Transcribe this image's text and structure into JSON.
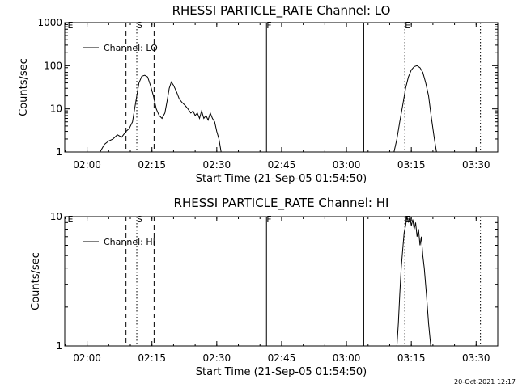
{
  "chart_data": [
    {
      "type": "line",
      "title": "RHESSI PARTICLE_RATE Channel: LO",
      "xlabel": "Start Time (21-Sep-05 01:54:50)",
      "ylabel": "Counts/sec",
      "yscale": "log",
      "xlim": [
        "01:54:50",
        "03:35:00"
      ],
      "ylim": [
        1,
        1000
      ],
      "x_ticks": [
        "02:00",
        "02:15",
        "02:30",
        "02:45",
        "03:00",
        "03:15",
        "03:30"
      ],
      "y_ticks": [
        "1",
        "10",
        "100",
        "1000"
      ],
      "legend": {
        "label": "Channel: LO",
        "placement": "top-left"
      },
      "markers": [
        {
          "label": "E",
          "time": "01:55:30",
          "style": "none"
        },
        {
          "label": "S",
          "time": "02:11:30",
          "style": "dotted"
        },
        {
          "label": "F",
          "time": "02:41:30",
          "style": "solid"
        },
        {
          "label": "E",
          "time": "03:13:30",
          "style": "dotted"
        }
      ],
      "extra_lines": [
        {
          "time": "02:09:00",
          "style": "dashed"
        },
        {
          "time": "02:15:30",
          "style": "dashed"
        },
        {
          "time": "03:04:00",
          "style": "solid"
        },
        {
          "time": "03:31:00",
          "style": "dotted"
        }
      ],
      "series": [
        {
          "name": "Channel: LO",
          "segments": [
            [
              [
                "02:03:00",
                1
              ],
              [
                "02:04:00",
                1.5
              ],
              [
                "02:05:00",
                1.8
              ],
              [
                "02:06:00",
                2
              ],
              [
                "02:07:00",
                2.5
              ],
              [
                "02:08:00",
                2.2
              ],
              [
                "02:09:00",
                3
              ],
              [
                "02:09:45",
                3.5
              ],
              [
                "02:10:30",
                5
              ],
              [
                "02:11:00",
                10
              ],
              [
                "02:11:30",
                20
              ],
              [
                "02:12:00",
                40
              ],
              [
                "02:12:40",
                57
              ],
              [
                "02:13:20",
                60
              ],
              [
                "02:14:00",
                55
              ],
              [
                "02:14:40",
                35
              ],
              [
                "02:15:20",
                20
              ],
              [
                "02:16:00",
                10
              ],
              [
                "02:16:40",
                7
              ],
              [
                "02:17:20",
                6
              ],
              [
                "02:18:00",
                8
              ],
              [
                "02:18:30",
                15
              ],
              [
                "02:19:00",
                30
              ],
              [
                "02:19:30",
                42
              ],
              [
                "02:20:00",
                35
              ],
              [
                "02:20:40",
                25
              ],
              [
                "02:21:20",
                17
              ],
              [
                "02:22:00",
                14
              ],
              [
                "02:22:40",
                12
              ],
              [
                "02:23:20",
                10
              ],
              [
                "02:24:00",
                8
              ],
              [
                "02:24:30",
                9
              ],
              [
                "02:25:00",
                7
              ],
              [
                "02:25:30",
                8
              ],
              [
                "02:26:00",
                6
              ],
              [
                "02:26:30",
                9
              ],
              [
                "02:27:00",
                6
              ],
              [
                "02:27:30",
                7
              ],
              [
                "02:28:00",
                5.5
              ],
              [
                "02:28:30",
                8
              ],
              [
                "02:29:00",
                6
              ],
              [
                "02:29:30",
                5
              ],
              [
                "02:30:00",
                3
              ],
              [
                "02:30:30",
                2
              ],
              [
                "02:31:00",
                1
              ]
            ],
            [
              [
                "03:11:00",
                1
              ],
              [
                "03:11:40",
                2
              ],
              [
                "03:12:20",
                5
              ],
              [
                "03:13:00",
                12
              ],
              [
                "03:13:40",
                30
              ],
              [
                "03:14:20",
                55
              ],
              [
                "03:15:00",
                80
              ],
              [
                "03:15:40",
                95
              ],
              [
                "03:16:20",
                100
              ],
              [
                "03:17:00",
                90
              ],
              [
                "03:17:40",
                70
              ],
              [
                "03:18:20",
                40
              ],
              [
                "03:19:00",
                20
              ],
              [
                "03:19:40",
                6
              ],
              [
                "03:20:20",
                2
              ],
              [
                "03:20:50",
                1
              ]
            ]
          ]
        }
      ]
    },
    {
      "type": "line",
      "title": "RHESSI PARTICLE_RATE Channel: HI",
      "xlabel": "Start Time (21-Sep-05 01:54:50)",
      "ylabel": "Counts/sec",
      "yscale": "log",
      "xlim": [
        "01:54:50",
        "03:35:00"
      ],
      "ylim": [
        1,
        10
      ],
      "x_ticks": [
        "02:00",
        "02:15",
        "02:30",
        "02:45",
        "03:00",
        "03:15",
        "03:30"
      ],
      "y_ticks": [
        "1",
        "10"
      ],
      "legend": {
        "label": "Channel: HI",
        "placement": "top-left"
      },
      "markers": [
        {
          "label": "E",
          "time": "01:55:30",
          "style": "none"
        },
        {
          "label": "S",
          "time": "02:11:30",
          "style": "dotted"
        },
        {
          "label": "F",
          "time": "02:41:30",
          "style": "solid"
        },
        {
          "label": "E",
          "time": "03:13:30",
          "style": "dotted"
        }
      ],
      "extra_lines": [
        {
          "time": "02:09:00",
          "style": "dashed"
        },
        {
          "time": "02:15:30",
          "style": "dashed"
        },
        {
          "time": "03:04:00",
          "style": "solid"
        },
        {
          "time": "03:31:00",
          "style": "dotted"
        }
      ],
      "series": [
        {
          "name": "Channel: HI",
          "segments": [
            [
              [
                "03:11:40",
                1
              ],
              [
                "03:12:00",
                1.5
              ],
              [
                "03:12:20",
                2.5
              ],
              [
                "03:12:40",
                4
              ],
              [
                "03:13:00",
                5.5
              ],
              [
                "03:13:20",
                7.5
              ],
              [
                "03:13:40",
                8.5
              ],
              [
                "03:14:00",
                10
              ],
              [
                "03:14:20",
                9
              ],
              [
                "03:14:40",
                10
              ],
              [
                "03:15:00",
                8.5
              ],
              [
                "03:15:20",
                9.5
              ],
              [
                "03:15:40",
                8
              ],
              [
                "03:16:00",
                9
              ],
              [
                "03:16:20",
                7
              ],
              [
                "03:16:40",
                8
              ],
              [
                "03:17:00",
                6
              ],
              [
                "03:17:20",
                7
              ],
              [
                "03:17:40",
                5
              ],
              [
                "03:18:00",
                4
              ],
              [
                "03:18:30",
                2.5
              ],
              [
                "03:19:00",
                1.5
              ],
              [
                "03:19:30",
                1
              ]
            ]
          ]
        }
      ]
    }
  ],
  "footer": {
    "timestamp": "20-Oct-2021 12:17"
  }
}
